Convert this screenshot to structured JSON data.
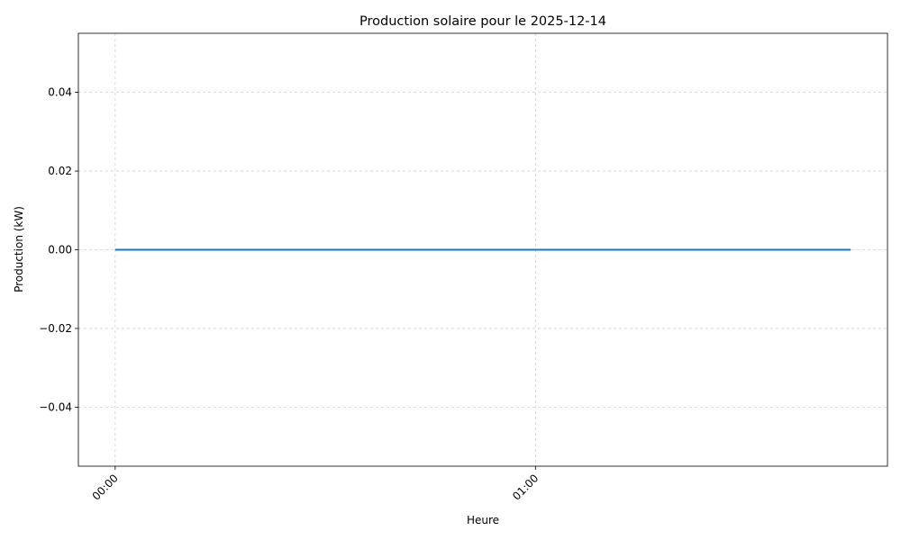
{
  "chart_data": {
    "type": "line",
    "title": "Production solaire pour le 2025-12-14",
    "x_label": "Heure",
    "y_label": "Production (kW)",
    "x": [
      0,
      15,
      30,
      45,
      60,
      75,
      90,
      105
    ],
    "series": [
      {
        "color": "#1f77b4",
        "values": [
          0,
          0,
          0,
          0,
          0,
          0,
          0,
          0
        ]
      }
    ],
    "xlim": [
      -5.25,
      110.25
    ],
    "xticks": [
      {
        "value": 0,
        "label": "00:00"
      },
      {
        "value": 60,
        "label": "01:00"
      }
    ],
    "ylim": [
      -0.055,
      0.055
    ],
    "yticks": [
      {
        "value": -0.04,
        "label": "−0.04"
      },
      {
        "value": -0.02,
        "label": "−0.02"
      },
      {
        "value": 0,
        "label": "0.00"
      },
      0.02,
      0.04
    ],
    "grid": true
  }
}
